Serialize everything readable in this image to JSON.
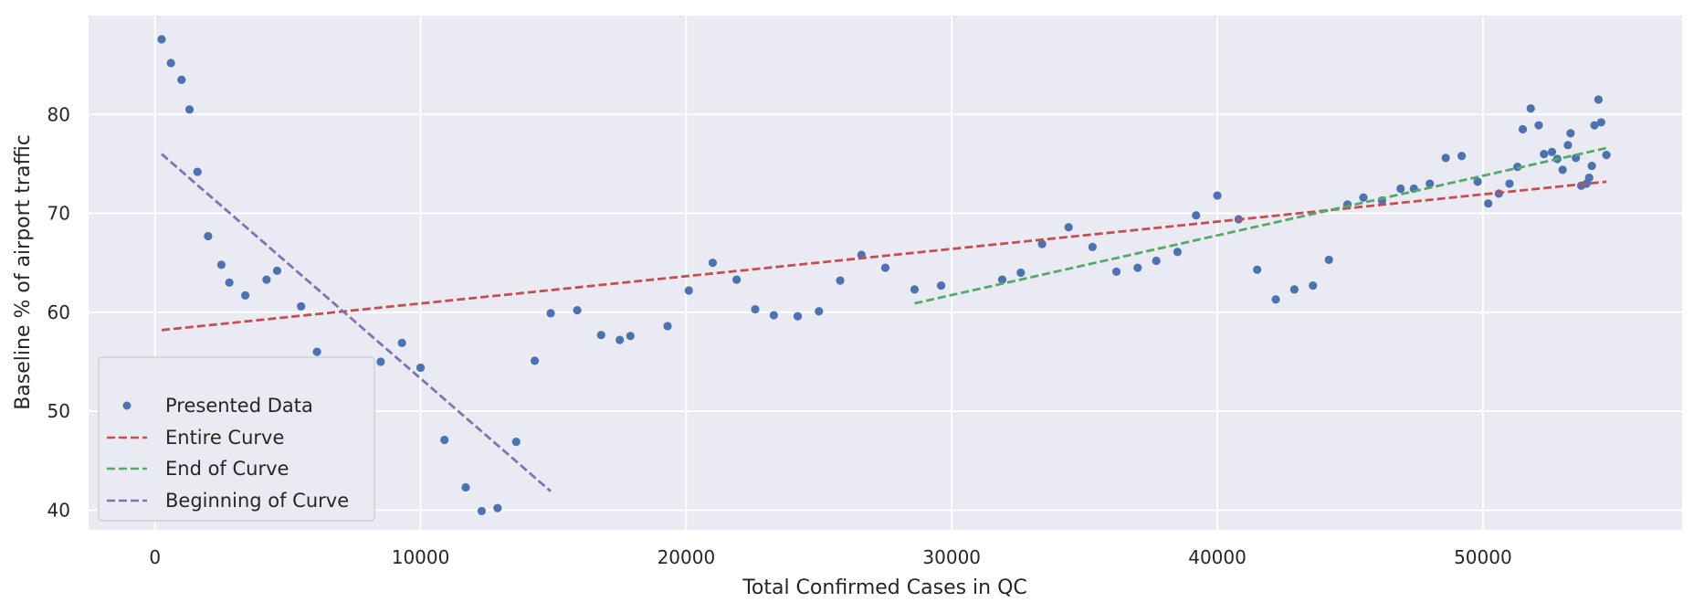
{
  "chart_data": {
    "type": "scatter",
    "title": "",
    "xlabel": "Total Confirmed Cases in QC",
    "ylabel": "Baseline % of airport traffic",
    "xlim": [
      -2500,
      57500
    ],
    "ylim": [
      38,
      90
    ],
    "xticks": [
      0,
      10000,
      20000,
      30000,
      40000,
      50000
    ],
    "yticks": [
      40,
      50,
      60,
      70,
      80
    ],
    "grid": true,
    "background": "#eaeaf2",
    "legend_position": "lower-left",
    "series": [
      {
        "name": "Presented Data",
        "kind": "points",
        "color": "#4c72b0",
        "points": [
          [
            250,
            87.6
          ],
          [
            600,
            85.2
          ],
          [
            1000,
            83.5
          ],
          [
            1300,
            80.5
          ],
          [
            1600,
            74.2
          ],
          [
            2000,
            67.7
          ],
          [
            2500,
            64.8
          ],
          [
            2800,
            63
          ],
          [
            3400,
            61.7
          ],
          [
            4200,
            63.3
          ],
          [
            4600,
            64.2
          ],
          [
            5500,
            60.6
          ],
          [
            6100,
            56
          ],
          [
            6100,
            55
          ],
          [
            7900,
            54.7
          ],
          [
            8500,
            55
          ],
          [
            9300,
            56.9
          ],
          [
            10000,
            54.4
          ],
          [
            10900,
            47.1
          ],
          [
            11700,
            42.3
          ],
          [
            12300,
            39.9
          ],
          [
            12900,
            40.2
          ],
          [
            13600,
            46.9
          ],
          [
            14300,
            55.1
          ],
          [
            14900,
            59.9
          ],
          [
            15900,
            60.2
          ],
          [
            16800,
            57.7
          ],
          [
            17500,
            57.2
          ],
          [
            17900,
            57.6
          ],
          [
            19300,
            58.6
          ],
          [
            20100,
            62.2
          ],
          [
            21000,
            65
          ],
          [
            21900,
            63.3
          ],
          [
            22600,
            60.3
          ],
          [
            23300,
            59.7
          ],
          [
            24200,
            59.6
          ],
          [
            25000,
            60.1
          ],
          [
            25800,
            63.2
          ],
          [
            26600,
            65.8
          ],
          [
            27500,
            64.5
          ],
          [
            28600,
            62.3
          ],
          [
            29600,
            62.7
          ],
          [
            31900,
            63.3
          ],
          [
            32600,
            64
          ],
          [
            33400,
            66.9
          ],
          [
            34400,
            68.6
          ],
          [
            35300,
            66.6
          ],
          [
            36200,
            64.1
          ],
          [
            37000,
            64.5
          ],
          [
            37700,
            65.2
          ],
          [
            38500,
            66.1
          ],
          [
            39200,
            69.8
          ],
          [
            40000,
            71.8
          ],
          [
            40800,
            69.4
          ],
          [
            41500,
            64.3
          ],
          [
            42200,
            61.3
          ],
          [
            42900,
            62.3
          ],
          [
            43600,
            62.7
          ],
          [
            44200,
            65.3
          ],
          [
            44900,
            70.9
          ],
          [
            45500,
            71.6
          ],
          [
            46200,
            71.3
          ],
          [
            46900,
            72.5
          ],
          [
            47400,
            72.5
          ],
          [
            48000,
            73
          ],
          [
            48600,
            75.6
          ],
          [
            49200,
            75.8
          ],
          [
            49800,
            73.2
          ],
          [
            50200,
            71
          ],
          [
            50600,
            72
          ],
          [
            51000,
            73
          ],
          [
            51300,
            74.7
          ],
          [
            51500,
            78.5
          ],
          [
            51800,
            80.6
          ],
          [
            52100,
            78.9
          ],
          [
            52300,
            76
          ],
          [
            52600,
            76.2
          ],
          [
            52800,
            75.5
          ],
          [
            53000,
            74.4
          ],
          [
            53200,
            76.9
          ],
          [
            53300,
            78.1
          ],
          [
            53500,
            75.6
          ],
          [
            53700,
            72.8
          ],
          [
            53900,
            73
          ],
          [
            54000,
            73.6
          ],
          [
            54100,
            74.8
          ],
          [
            54200,
            78.9
          ],
          [
            54350,
            81.5
          ],
          [
            54450,
            79.2
          ],
          [
            54650,
            75.9
          ]
        ]
      },
      {
        "name": "Entire Curve",
        "kind": "dashed-line",
        "color": "#c44e52",
        "points": [
          [
            250,
            58.2
          ],
          [
            54650,
            73.2
          ]
        ]
      },
      {
        "name": "End of Curve",
        "kind": "dashed-line",
        "color": "#55a868",
        "points": [
          [
            28600,
            60.9
          ],
          [
            54650,
            76.6
          ]
        ]
      },
      {
        "name": "Beginning of Curve",
        "kind": "dashed-line",
        "color": "#8172b3",
        "points": [
          [
            250,
            76
          ],
          [
            14900,
            41.9
          ]
        ]
      }
    ]
  }
}
